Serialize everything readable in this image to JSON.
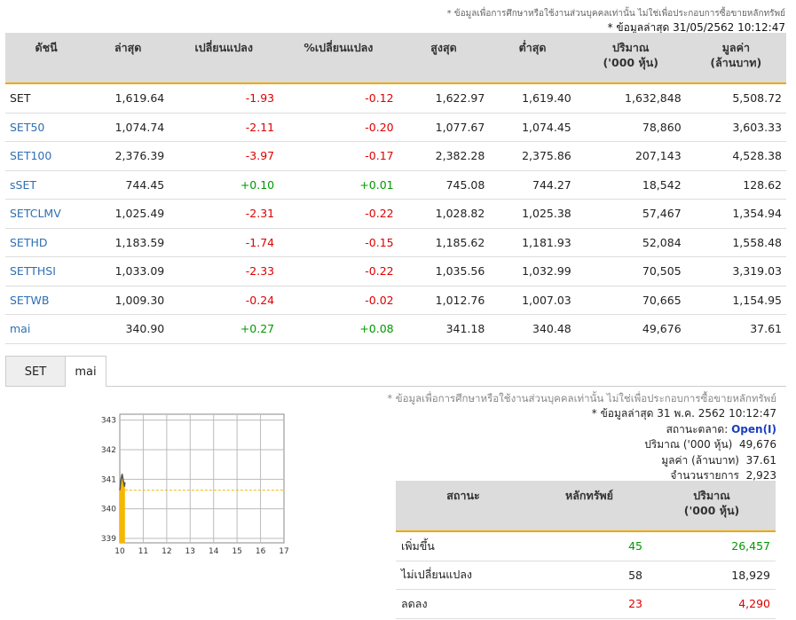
{
  "header": {
    "disclaimer": "* ข้อมูลเพื่อการศึกษาหรือใช้งานส่วนบุคคลเท่านั้น ไม่ใช่เพื่อประกอบการซื้อขายหลักทรัพย์",
    "updated": "* ข้อมูลล่าสุด 31/05/2562 10:12:47"
  },
  "index_table": {
    "headers": {
      "index": "ดัชนี",
      "last": "ล่าสุด",
      "change": "เปลี่ยนแปลง",
      "pct_change": "%เปลี่ยนแปลง",
      "high": "สูงสุด",
      "low": "ต่ำสุด",
      "volume": "ปริมาณ",
      "volume_unit": "('000 หุ้น)",
      "value": "มูลค่า",
      "value_unit": "(ล้านบาท)"
    },
    "rows": [
      {
        "name": "SET",
        "last": "1,619.64",
        "change": "-1.93",
        "pct": "-0.12",
        "high": "1,622.97",
        "low": "1,619.40",
        "volume": "1,632,848",
        "value": "5,508.72",
        "link": false
      },
      {
        "name": "SET50",
        "last": "1,074.74",
        "change": "-2.11",
        "pct": "-0.20",
        "high": "1,077.67",
        "low": "1,074.45",
        "volume": "78,860",
        "value": "3,603.33",
        "link": true
      },
      {
        "name": "SET100",
        "last": "2,376.39",
        "change": "-3.97",
        "pct": "-0.17",
        "high": "2,382.28",
        "low": "2,375.86",
        "volume": "207,143",
        "value": "4,528.38",
        "link": true
      },
      {
        "name": "sSET",
        "last": "744.45",
        "change": "+0.10",
        "pct": "+0.01",
        "high": "745.08",
        "low": "744.27",
        "volume": "18,542",
        "value": "128.62",
        "link": true
      },
      {
        "name": "SETCLMV",
        "last": "1,025.49",
        "change": "-2.31",
        "pct": "-0.22",
        "high": "1,028.82",
        "low": "1,025.38",
        "volume": "57,467",
        "value": "1,354.94",
        "link": true
      },
      {
        "name": "SETHD",
        "last": "1,183.59",
        "change": "-1.74",
        "pct": "-0.15",
        "high": "1,185.62",
        "low": "1,181.93",
        "volume": "52,084",
        "value": "1,558.48",
        "link": true
      },
      {
        "name": "SETTHSI",
        "last": "1,033.09",
        "change": "-2.33",
        "pct": "-0.22",
        "high": "1,035.56",
        "low": "1,032.99",
        "volume": "70,505",
        "value": "3,319.03",
        "link": true
      },
      {
        "name": "SETWB",
        "last": "1,009.30",
        "change": "-0.24",
        "pct": "-0.02",
        "high": "1,012.76",
        "low": "1,007.03",
        "volume": "70,665",
        "value": "1,154.95",
        "link": true
      },
      {
        "name": "mai",
        "last": "340.90",
        "change": "+0.27",
        "pct": "+0.08",
        "high": "341.18",
        "low": "340.48",
        "volume": "49,676",
        "value": "37.61",
        "link": true
      }
    ]
  },
  "tabs": [
    {
      "label": "SET",
      "active": false
    },
    {
      "label": "mai",
      "active": true
    }
  ],
  "summary": {
    "disclaimer": "* ข้อมูลเพื่อการศึกษาหรือใช้งานส่วนบุคคลเท่านั้น ไม่ใช่เพื่อประกอบการซื้อขายหลักทรัพย์",
    "updated": "* ข้อมูลล่าสุด 31 พ.ค. 2562 10:12:47",
    "status_label": "สถานะตลาด:",
    "status_value": "Open(I)",
    "volume_label": "ปริมาณ ('000 หุ้น)",
    "volume_value": "49,676",
    "value_label": "มูลค่า (ล้านบาท)",
    "value_value": "37.61",
    "trades_label": "จำนวนรายการ",
    "trades_value": "2,923"
  },
  "stat_table": {
    "headers": {
      "status": "สถานะ",
      "securities": "หลักทรัพย์",
      "volume": "ปริมาณ",
      "volume_unit": "('000 หุ้น)"
    },
    "rows": [
      {
        "label": "เพิ่มขึ้น",
        "count": "45",
        "volume": "26,457",
        "color": "green"
      },
      {
        "label": "ไม่เปลี่ยนแปลง",
        "count": "58",
        "volume": "18,929",
        "color": "black"
      },
      {
        "label": "ลดลง",
        "count": "23",
        "volume": "4,290",
        "color": "red"
      }
    ]
  },
  "chart_data": {
    "type": "area",
    "title": "",
    "xlabel": "",
    "ylabel": "",
    "x_ticks": [
      "10",
      "11",
      "12",
      "13",
      "14",
      "15",
      "16",
      "17"
    ],
    "y_ticks": [
      "339",
      "340",
      "341",
      "342",
      "343"
    ],
    "ylim": [
      338.85,
      343.2
    ],
    "xlim": [
      10,
      17
    ],
    "prev_close": 340.63,
    "series": [
      {
        "x": [
          10.0,
          10.05,
          10.1,
          10.15,
          10.2,
          10.22
        ],
        "y": [
          340.63,
          341.0,
          341.18,
          340.95,
          340.75,
          340.9
        ]
      }
    ],
    "area_color": "#f5b800",
    "line_color": "#555555",
    "ref_line_color": "#f5b800"
  }
}
